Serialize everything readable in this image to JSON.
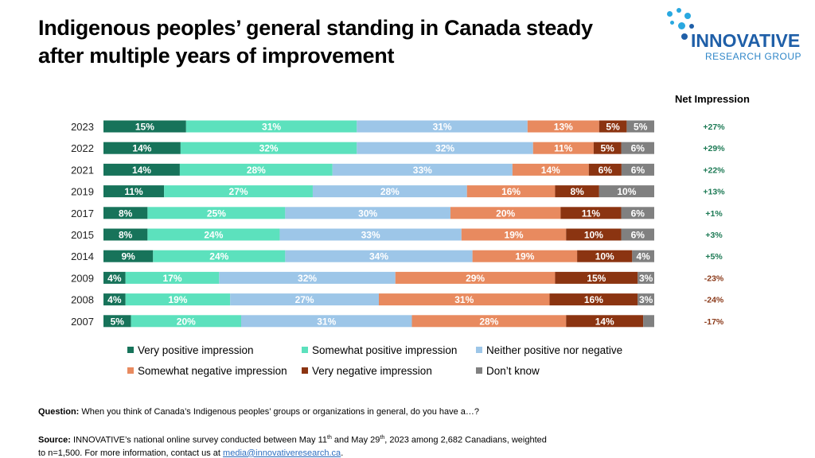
{
  "title": "Indigenous peoples’ general standing in Canada steady after multiple years of improvement",
  "logo": {
    "main": "INNOVATIVE",
    "sub": "RESEARCH GROUP"
  },
  "net_header": "Net Impression",
  "footer": {
    "question_label": "Question:",
    "question_text": " When you think of Canada’s Indigenous peoples’ groups or organizations in general, do you have a…?",
    "source_label": "Source:",
    "source_text_1": " INNOVATIVE’s national online survey conducted between May 11",
    "sup1": "th",
    "source_text_2": " and May 29",
    "sup2": "th",
    "source_text_3": ", 2023 among 2,682 Canadians, weighted to n=1,500. For more information, contact us at ",
    "email": "media@innovativeresearch.ca",
    "source_end": "."
  },
  "chart_data": {
    "type": "bar",
    "orientation": "horizontal",
    "stacked": true,
    "categories": [
      "2023",
      "2022",
      "2021",
      "2019",
      "2017",
      "2015",
      "2014",
      "2009",
      "2008",
      "2007"
    ],
    "series": [
      {
        "name": "Very positive impression",
        "color": "#17735a",
        "values": [
          15,
          14,
          14,
          11,
          8,
          8,
          9,
          4,
          4,
          5
        ]
      },
      {
        "name": "Somewhat positive impression",
        "color": "#5ce1bd",
        "values": [
          31,
          32,
          28,
          27,
          25,
          24,
          24,
          17,
          19,
          20
        ]
      },
      {
        "name": "Neither positive nor negative",
        "color": "#9dc6e8",
        "values": [
          31,
          32,
          33,
          28,
          30,
          33,
          34,
          32,
          27,
          31
        ]
      },
      {
        "name": "Somewhat negative impression",
        "color": "#e88a5f",
        "values": [
          13,
          11,
          14,
          16,
          20,
          19,
          19,
          29,
          31,
          28
        ]
      },
      {
        "name": "Very negative impression",
        "color": "#8b3411",
        "values": [
          5,
          5,
          6,
          8,
          11,
          10,
          10,
          15,
          16,
          14
        ]
      },
      {
        "name": "Don’t know",
        "color": "#808080",
        "values": [
          5,
          6,
          6,
          10,
          6,
          6,
          4,
          3,
          3,
          2
        ]
      }
    ],
    "labels_hidden": [
      [],
      [],
      [],
      [],
      [],
      [],
      [],
      [],
      [],
      [
        5
      ]
    ],
    "net_impression": [
      "+27%",
      "+29%",
      "+22%",
      "+13%",
      "+1%",
      "+3%",
      "+5%",
      "-23%",
      "-24%",
      "-17%"
    ],
    "net_colors": {
      "positive": "#1d7a55",
      "negative": "#8b3a1a"
    },
    "legend_placement": "bottom",
    "grid": false
  }
}
